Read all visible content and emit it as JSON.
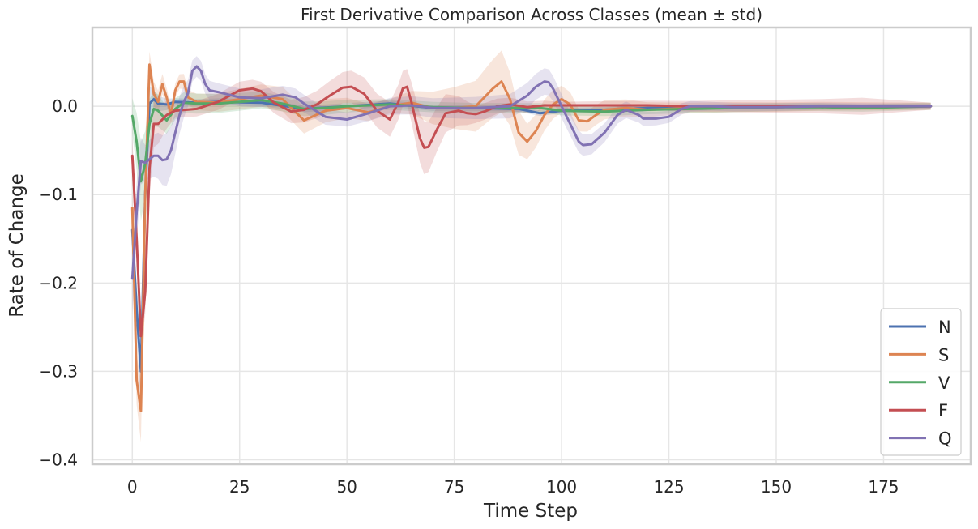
{
  "chart_data": {
    "type": "line",
    "title": "First Derivative Comparison Across Classes (mean ± std)",
    "xlabel": "Time Step",
    "ylabel": "Rate of Change",
    "xlim": [
      -9.3,
      195.3
    ],
    "ylim": [
      -0.405,
      0.089
    ],
    "xticks": [
      0,
      25,
      50,
      75,
      100,
      125,
      150,
      175
    ],
    "xtick_labels": [
      "0",
      "25",
      "50",
      "75",
      "100",
      "125",
      "150",
      "175"
    ],
    "yticks": [
      -0.4,
      -0.3,
      -0.2,
      -0.1,
      0.0
    ],
    "ytick_labels": [
      "−0.4",
      "−0.3",
      "−0.2",
      "−0.1",
      "0.0"
    ],
    "grid": true,
    "legend_position": "lower right",
    "band": "mean ± std",
    "series": [
      {
        "name": "N",
        "color": "#4c72b0",
        "points": [
          [
            0,
            -0.14
          ],
          [
            1,
            -0.23
          ],
          [
            2,
            -0.3
          ],
          [
            3,
            -0.1
          ],
          [
            4,
            0.003
          ],
          [
            5,
            0.008
          ],
          [
            6,
            0.003
          ],
          [
            8,
            0.002
          ],
          [
            10,
            0.005
          ],
          [
            15,
            0.004
          ],
          [
            20,
            0.005
          ],
          [
            30,
            0.004
          ],
          [
            40,
            -0.003
          ],
          [
            50,
            0.0
          ],
          [
            60,
            0.003
          ],
          [
            70,
            -0.002
          ],
          [
            80,
            -0.002
          ],
          [
            90,
            -0.003
          ],
          [
            95,
            -0.008
          ],
          [
            100,
            -0.005
          ],
          [
            110,
            -0.004
          ],
          [
            120,
            -0.002
          ],
          [
            130,
            -0.002
          ],
          [
            140,
            -0.001
          ],
          [
            150,
            -0.001
          ],
          [
            160,
            0.0
          ],
          [
            170,
            0.0
          ],
          [
            186,
            0.0
          ]
        ],
        "std": [
          [
            0,
            0.02
          ],
          [
            2,
            0.04
          ],
          [
            5,
            0.01
          ],
          [
            10,
            0.004
          ],
          [
            186,
            0.002
          ]
        ]
      },
      {
        "name": "S",
        "color": "#dd8452",
        "points": [
          [
            0,
            -0.115
          ],
          [
            1,
            -0.31
          ],
          [
            2,
            -0.345
          ],
          [
            3,
            -0.1
          ],
          [
            4,
            0.047
          ],
          [
            5,
            0.014
          ],
          [
            6,
            0.005
          ],
          [
            7,
            0.025
          ],
          [
            8,
            0.01
          ],
          [
            9,
            -0.01
          ],
          [
            10,
            0.018
          ],
          [
            11,
            0.028
          ],
          [
            12,
            0.028
          ],
          [
            13,
            0.01
          ],
          [
            15,
            0.005
          ],
          [
            20,
            0.004
          ],
          [
            25,
            0.008
          ],
          [
            30,
            0.012
          ],
          [
            35,
            0.008
          ],
          [
            40,
            -0.016
          ],
          [
            45,
            -0.005
          ],
          [
            50,
            -0.002
          ],
          [
            55,
            -0.007
          ],
          [
            60,
            0.0
          ],
          [
            65,
            0.004
          ],
          [
            70,
            -0.002
          ],
          [
            75,
            -0.002
          ],
          [
            80,
            0.0
          ],
          [
            84,
            0.02
          ],
          [
            86,
            0.028
          ],
          [
            88,
            0.008
          ],
          [
            90,
            -0.03
          ],
          [
            92,
            -0.04
          ],
          [
            94,
            -0.028
          ],
          [
            96,
            -0.01
          ],
          [
            98,
            0.002
          ],
          [
            100,
            0.008
          ],
          [
            102,
            0.002
          ],
          [
            104,
            -0.016
          ],
          [
            106,
            -0.017
          ],
          [
            108,
            -0.01
          ],
          [
            110,
            -0.004
          ],
          [
            115,
            -0.002
          ],
          [
            120,
            -0.004
          ],
          [
            125,
            -0.003
          ],
          [
            130,
            -0.002
          ],
          [
            140,
            -0.001
          ],
          [
            150,
            -0.001
          ],
          [
            160,
            0.0
          ],
          [
            170,
            0.0
          ],
          [
            186,
            0.0
          ]
        ],
        "std": [
          [
            0,
            0.02
          ],
          [
            2,
            0.035
          ],
          [
            4,
            0.015
          ],
          [
            10,
            0.008
          ],
          [
            40,
            0.015
          ],
          [
            60,
            0.008
          ],
          [
            86,
            0.035
          ],
          [
            92,
            0.02
          ],
          [
            105,
            0.012
          ],
          [
            130,
            0.006
          ],
          [
            186,
            0.004
          ]
        ]
      },
      {
        "name": "V",
        "color": "#55a868",
        "points": [
          [
            0,
            -0.011
          ],
          [
            1,
            -0.04
          ],
          [
            2,
            -0.085
          ],
          [
            3,
            -0.065
          ],
          [
            4,
            -0.02
          ],
          [
            5,
            -0.003
          ],
          [
            6,
            -0.005
          ],
          [
            8,
            -0.016
          ],
          [
            10,
            -0.003
          ],
          [
            12,
            0.004
          ],
          [
            15,
            0.003
          ],
          [
            20,
            0.003
          ],
          [
            25,
            0.005
          ],
          [
            30,
            0.007
          ],
          [
            35,
            0.003
          ],
          [
            40,
            -0.003
          ],
          [
            45,
            -0.002
          ],
          [
            50,
            0.0
          ],
          [
            60,
            0.002
          ],
          [
            70,
            -0.001
          ],
          [
            80,
            -0.002
          ],
          [
            90,
            -0.002
          ],
          [
            95,
            -0.002
          ],
          [
            100,
            -0.005
          ],
          [
            110,
            -0.006
          ],
          [
            120,
            -0.004
          ],
          [
            130,
            -0.003
          ],
          [
            140,
            -0.002
          ],
          [
            150,
            -0.001
          ],
          [
            160,
            -0.001
          ],
          [
            170,
            -0.002
          ],
          [
            186,
            0.0
          ]
        ],
        "std": [
          [
            0,
            0.02
          ],
          [
            2,
            0.045
          ],
          [
            5,
            0.02
          ],
          [
            10,
            0.012
          ],
          [
            25,
            0.01
          ],
          [
            60,
            0.006
          ],
          [
            186,
            0.004
          ]
        ]
      },
      {
        "name": "F",
        "color": "#c44e52",
        "points": [
          [
            0,
            -0.056
          ],
          [
            1,
            -0.15
          ],
          [
            2,
            -0.26
          ],
          [
            3,
            -0.21
          ],
          [
            4,
            -0.07
          ],
          [
            5,
            -0.02
          ],
          [
            6,
            -0.02
          ],
          [
            8,
            -0.01
          ],
          [
            10,
            -0.005
          ],
          [
            15,
            -0.003
          ],
          [
            20,
            0.005
          ],
          [
            25,
            0.018
          ],
          [
            28,
            0.02
          ],
          [
            30,
            0.017
          ],
          [
            33,
            0.004
          ],
          [
            37,
            -0.006
          ],
          [
            40,
            -0.004
          ],
          [
            43,
            0.002
          ],
          [
            46,
            0.012
          ],
          [
            49,
            0.021
          ],
          [
            51,
            0.022
          ],
          [
            54,
            0.014
          ],
          [
            57,
            -0.005
          ],
          [
            60,
            -0.015
          ],
          [
            62,
            0.005
          ],
          [
            63,
            0.02
          ],
          [
            64,
            0.022
          ],
          [
            65,
            0.005
          ],
          [
            67,
            -0.036
          ],
          [
            68,
            -0.047
          ],
          [
            69,
            -0.046
          ],
          [
            71,
            -0.026
          ],
          [
            73,
            -0.008
          ],
          [
            76,
            -0.005
          ],
          [
            78,
            -0.008
          ],
          [
            80,
            -0.009
          ],
          [
            82,
            -0.006
          ],
          [
            85,
            0.0
          ],
          [
            88,
            0.002
          ],
          [
            92,
            -0.001
          ],
          [
            96,
            0.001
          ],
          [
            100,
            0.001
          ],
          [
            105,
            0.001
          ],
          [
            110,
            0.001
          ],
          [
            120,
            0.001
          ],
          [
            130,
            0.0
          ],
          [
            140,
            0.0
          ],
          [
            150,
            0.0
          ],
          [
            160,
            0.0
          ],
          [
            170,
            0.0
          ],
          [
            186,
            0.0
          ]
        ],
        "std": [
          [
            0,
            0.02
          ],
          [
            2,
            0.02
          ],
          [
            4,
            0.03
          ],
          [
            10,
            0.008
          ],
          [
            28,
            0.01
          ],
          [
            50,
            0.018
          ],
          [
            64,
            0.02
          ],
          [
            68,
            0.03
          ],
          [
            80,
            0.01
          ],
          [
            100,
            0.004
          ],
          [
            160,
            0.008
          ],
          [
            172,
            0.01
          ],
          [
            186,
            0.004
          ]
        ]
      },
      {
        "name": "Q",
        "color": "#8172b3",
        "points": [
          [
            0,
            -0.195
          ],
          [
            1,
            -0.12
          ],
          [
            2,
            -0.062
          ],
          [
            3,
            -0.064
          ],
          [
            4,
            -0.06
          ],
          [
            5,
            -0.056
          ],
          [
            6,
            -0.056
          ],
          [
            7,
            -0.061
          ],
          [
            8,
            -0.06
          ],
          [
            9,
            -0.05
          ],
          [
            10,
            -0.03
          ],
          [
            11,
            -0.01
          ],
          [
            12,
            0.005
          ],
          [
            13,
            0.015
          ],
          [
            14,
            0.04
          ],
          [
            15,
            0.045
          ],
          [
            16,
            0.04
          ],
          [
            17,
            0.025
          ],
          [
            18,
            0.018
          ],
          [
            20,
            0.016
          ],
          [
            25,
            0.01
          ],
          [
            30,
            0.009
          ],
          [
            35,
            0.013
          ],
          [
            38,
            0.01
          ],
          [
            40,
            0.003
          ],
          [
            45,
            -0.012
          ],
          [
            50,
            -0.015
          ],
          [
            55,
            -0.008
          ],
          [
            60,
            0.0
          ],
          [
            65,
            0.001
          ],
          [
            70,
            -0.002
          ],
          [
            80,
            -0.002
          ],
          [
            88,
            0.0
          ],
          [
            92,
            0.012
          ],
          [
            94,
            0.022
          ],
          [
            96,
            0.028
          ],
          [
            97,
            0.027
          ],
          [
            98,
            0.02
          ],
          [
            100,
            0.0
          ],
          [
            102,
            -0.02
          ],
          [
            104,
            -0.04
          ],
          [
            105,
            -0.044
          ],
          [
            107,
            -0.043
          ],
          [
            110,
            -0.03
          ],
          [
            113,
            -0.01
          ],
          [
            115,
            -0.004
          ],
          [
            118,
            -0.01
          ],
          [
            119,
            -0.014
          ],
          [
            122,
            -0.014
          ],
          [
            125,
            -0.012
          ],
          [
            128,
            -0.003
          ],
          [
            130,
            0.0
          ],
          [
            135,
            0.0
          ],
          [
            140,
            -0.001
          ],
          [
            150,
            -0.001
          ],
          [
            160,
            0.0
          ],
          [
            170,
            0.0
          ],
          [
            186,
            0.0
          ]
        ],
        "std": [
          [
            0,
            0.04
          ],
          [
            3,
            0.02
          ],
          [
            8,
            0.03
          ],
          [
            14,
            0.012
          ],
          [
            20,
            0.01
          ],
          [
            40,
            0.01
          ],
          [
            50,
            0.008
          ],
          [
            96,
            0.015
          ],
          [
            105,
            0.012
          ],
          [
            120,
            0.008
          ],
          [
            135,
            0.005
          ],
          [
            186,
            0.003
          ]
        ]
      }
    ]
  }
}
